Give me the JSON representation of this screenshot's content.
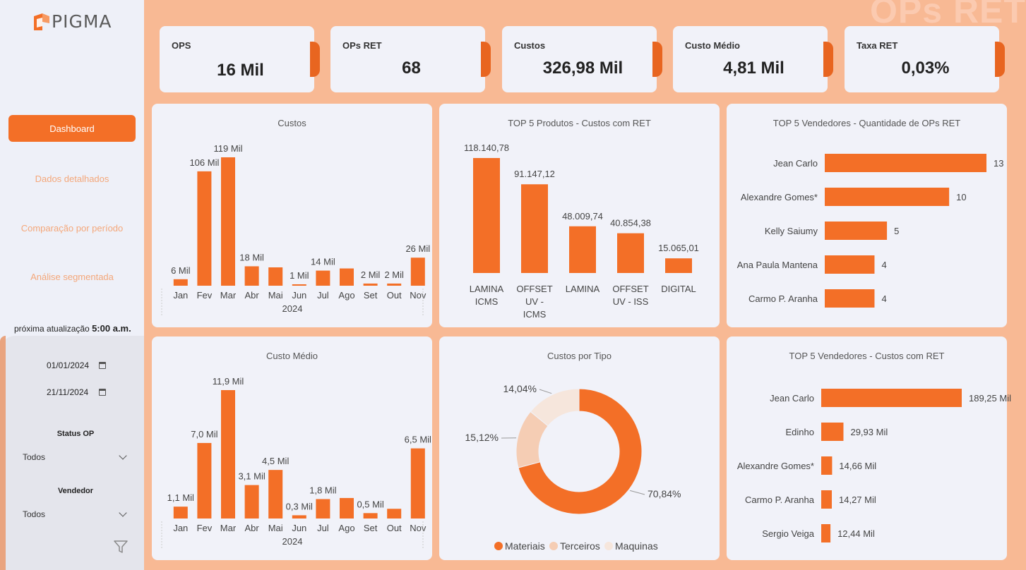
{
  "brand": {
    "name": "PIGMA"
  },
  "page": {
    "watermark_title": "OPs RET"
  },
  "nav": [
    {
      "label": "Dashboard",
      "active": true
    },
    {
      "label": "Dados detalhados",
      "active": false
    },
    {
      "label": "Comparação por período",
      "active": false
    },
    {
      "label": "Análise segmentada",
      "active": false
    }
  ],
  "update": {
    "label": "próxima atualização",
    "time": "5:00 a.m."
  },
  "filters": {
    "date_start": "01/01/2024",
    "date_end": "21/11/2024",
    "status_label": "Status OP",
    "status_value": "Todos",
    "seller_label": "Vendedor",
    "seller_value": "Todos"
  },
  "kpis": [
    {
      "label": "OPS",
      "value": "16 Mil"
    },
    {
      "label": "OPs RET",
      "value": "68"
    },
    {
      "label": "Custos",
      "value": "326,98 Mil"
    },
    {
      "label": "Custo Médio",
      "value": "4,81 Mil"
    },
    {
      "label": "Taxa RET",
      "value": "0,03%"
    }
  ],
  "colors": {
    "accent": "#f36f27",
    "light": "#f5cdb4",
    "lighter": "#f6e6dc"
  },
  "chart_data": [
    {
      "id": "custos",
      "type": "bar",
      "title": "Custos",
      "categories": [
        "Jan",
        "Fev",
        "Mar",
        "Abr",
        "Mai",
        "Jun",
        "Jul",
        "Ago",
        "Set",
        "Out",
        "Nov"
      ],
      "axis_year": "2024",
      "values": [
        6,
        106,
        119,
        18,
        17,
        1,
        14,
        16,
        2,
        2,
        26
      ],
      "labels": [
        "6 Mil",
        "106 Mil",
        "119 Mil",
        "18 Mil",
        "",
        "1 Mil",
        "14 Mil",
        "",
        "2 Mil",
        "2 Mil",
        "26 Mil"
      ]
    },
    {
      "id": "top5-produtos",
      "type": "bar",
      "title": "TOP 5 Produtos - Custos com RET",
      "categories": [
        [
          "LAMINA",
          "ICMS"
        ],
        [
          "OFFSET",
          "UV -",
          "ICMS"
        ],
        [
          "LAMINA"
        ],
        [
          "OFFSET",
          "UV - ISS"
        ],
        [
          "DIGITAL"
        ]
      ],
      "values": [
        118140.78,
        91147.12,
        48009.74,
        40854.38,
        15065.01
      ],
      "labels": [
        "118.140,78",
        "91.147,12",
        "48.009,74",
        "40.854,38",
        "15.065,01"
      ]
    },
    {
      "id": "top5-vendedores-qtd",
      "type": "bar",
      "orientation": "horizontal",
      "title": "TOP 5 Vendedores - Quantidade de OPs RET",
      "categories": [
        "Jean Carlo",
        "Alexandre Gomes*",
        "Kelly Saiumy",
        "Ana Paula Mantena",
        "Carmo P. Aranha"
      ],
      "values": [
        13,
        10,
        5,
        4,
        4
      ],
      "labels": [
        "13",
        "10",
        "5",
        "4",
        "4"
      ]
    },
    {
      "id": "custo-medio",
      "type": "bar",
      "title": "Custo Médio",
      "categories": [
        "Jan",
        "Fev",
        "Mar",
        "Abr",
        "Mai",
        "Jun",
        "Jul",
        "Ago",
        "Set",
        "Out",
        "Nov"
      ],
      "axis_year": "2024",
      "values": [
        1.1,
        7.0,
        11.9,
        3.1,
        4.5,
        0.3,
        1.8,
        1.9,
        0.5,
        0.9,
        6.5
      ],
      "labels": [
        "1,1 Mil",
        "7,0 Mil",
        "11,9 Mil",
        "3,1 Mil",
        "4,5 Mil",
        "0,3 Mil",
        "1,8 Mil",
        "",
        "0,5 Mil",
        "",
        "6,5 Mil"
      ]
    },
    {
      "id": "custos-por-tipo",
      "type": "pie",
      "title": "Custos por Tipo",
      "categories": [
        "Materiais",
        "Terceiros",
        "Maquinas"
      ],
      "values": [
        70.84,
        15.12,
        14.04
      ],
      "labels": [
        "70,84%",
        "15,12%",
        "14,04%"
      ]
    },
    {
      "id": "top5-vendedores-custos",
      "type": "bar",
      "orientation": "horizontal",
      "title": "TOP 5 Vendedores - Custos com RET",
      "categories": [
        "Jean Carlo",
        "Edinho",
        "Alexandre Gomes*",
        "Carmo P. Aranha",
        "Sergio Veiga"
      ],
      "values": [
        189.25,
        29.93,
        14.66,
        14.27,
        12.44
      ],
      "labels": [
        "189,25 Mil",
        "29,93 Mil",
        "14,66 Mil",
        "14,27 Mil",
        "12,44 Mil"
      ]
    }
  ]
}
